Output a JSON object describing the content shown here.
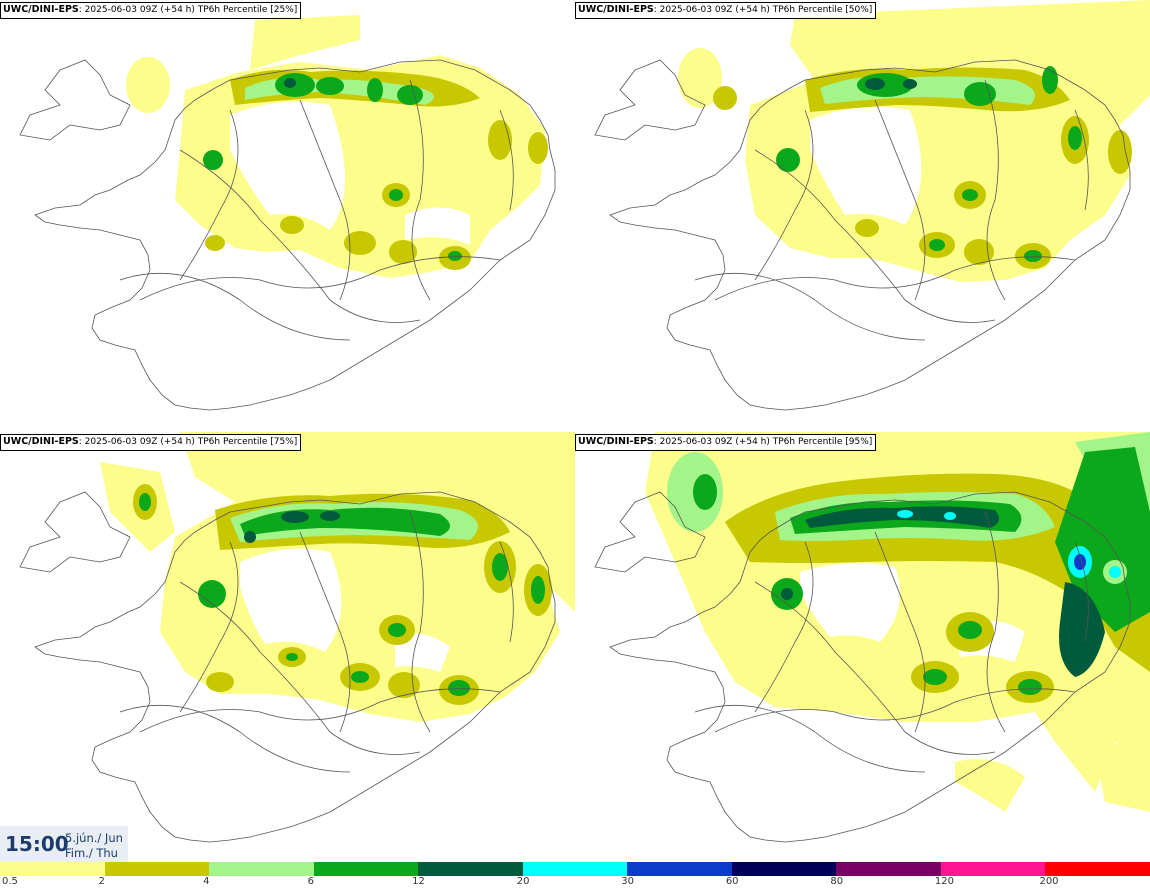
{
  "model": "UWC/DINI-EPS",
  "panels": [
    {
      "model": "UWC/DINI-EPS",
      "subtitle": ": 2025-06-03 09Z (+54 h) TP6h Percentile [25%]"
    },
    {
      "model": "UWC/DINI-EPS",
      "subtitle": ": 2025-06-03 09Z (+54 h) TP6h Percentile [50%]"
    },
    {
      "model": "UWC/DINI-EPS",
      "subtitle": ": 2025-06-03 09Z (+54 h) TP6h Percentile [75%]"
    },
    {
      "model": "UWC/DINI-EPS",
      "subtitle": ": 2025-06-03 09Z (+54 h) TP6h Percentile [95%]"
    }
  ],
  "time": {
    "hour": "15:00",
    "date_line1": "5.jún./ Jun",
    "date_line2": "Fim./ Thu"
  },
  "legend": {
    "ticks": [
      "0.5",
      "2",
      "4",
      "6",
      "12",
      "20",
      "30",
      "60",
      "80",
      "120",
      "200"
    ],
    "colors": [
      "#fdfd8c",
      "#c8c800",
      "#a3f58a",
      "#0aa81a",
      "#005a3c",
      "#00fffa",
      "#0a3cc8",
      "#00005a",
      "#780064",
      "#ff1493",
      "#ff0000"
    ]
  },
  "colors": {
    "light_yellow": "#fdfd8c",
    "olive": "#c8c800",
    "light_green": "#a3f58a",
    "green": "#0aa81a",
    "dark_green": "#005a3c",
    "cyan": "#00fffa",
    "blue": "#0a3cc8"
  }
}
